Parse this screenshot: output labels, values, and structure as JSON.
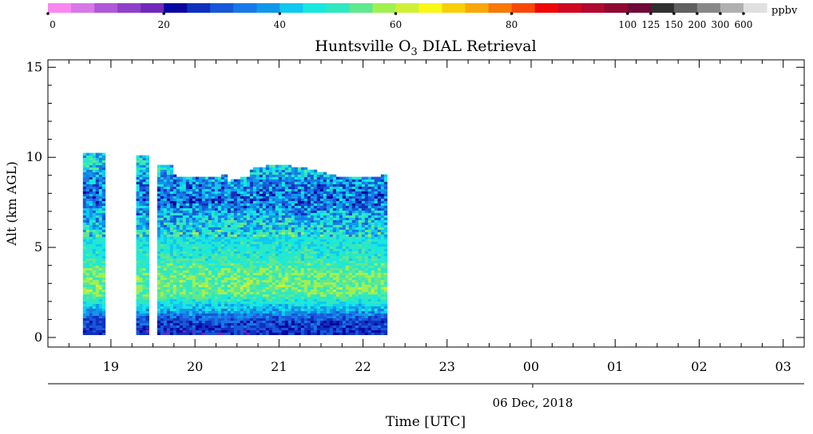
{
  "chart_data": {
    "type": "heatmap",
    "title": "Huntsville O3 DIAL Retrieval",
    "title_main": "Huntsville O",
    "title_sub": "3",
    "title_tail": " DIAL Retrieval",
    "xlabel": "Time [UTC]",
    "ylabel": "Alt (km AGL)",
    "date_label": "06 Dec, 2018",
    "x_unit": "hour UTC",
    "x_range": [
      "18:15",
      "03:15"
    ],
    "x_ticks": [
      "19",
      "20",
      "21",
      "22",
      "23",
      "00",
      "01",
      "02",
      "03"
    ],
    "ylim": [
      0,
      15.5
    ],
    "y_ticks": [
      "0",
      "5",
      "10",
      "15"
    ],
    "colorbar": {
      "unit": "ppbv",
      "tick_labels": [
        "0",
        "20",
        "40",
        "60",
        "80",
        "100",
        "125",
        "150",
        "200",
        "300",
        "600"
      ],
      "colors": [
        "#f888f0",
        "#d878e8",
        "#b058d8",
        "#9040c8",
        "#7028b8",
        "#0808a0",
        "#1030c0",
        "#1858d8",
        "#1878e8",
        "#1098e8",
        "#10c8f0",
        "#18e8e0",
        "#30e8c0",
        "#60e890",
        "#a0f050",
        "#d0f038",
        "#f8f818",
        "#f8d008",
        "#f8a808",
        "#f87808",
        "#f84808",
        "#f00808",
        "#d00820",
        "#b00830",
        "#900830",
        "#700838",
        "#303030",
        "#606060",
        "#888888",
        "#b0b0b0",
        "#e0e0e0"
      ],
      "class_edges": "0-20-40-60-80-100 linear (4 ppbv bins), then 100,125,150,200,300,600"
    },
    "profiles": [
      {
        "start": "18:40",
        "end": "18:55",
        "top_km": 10.2
      },
      {
        "start": "19:18",
        "end": "19:27",
        "top_km": 10.1
      },
      {
        "start": "19:33",
        "end": "22:17",
        "top_km": 9.2
      }
    ],
    "o3_ppbv_by_altitude": [
      {
        "alt_km": 0.2,
        "ppbv": 25
      },
      {
        "alt_km": 1.0,
        "ppbv": 30
      },
      {
        "alt_km": 1.6,
        "ppbv": 42
      },
      {
        "alt_km": 2.5,
        "ppbv": 55
      },
      {
        "alt_km": 3.5,
        "ppbv": 54
      },
      {
        "alt_km": 4.5,
        "ppbv": 48
      },
      {
        "alt_km": 5.5,
        "ppbv": 46
      },
      {
        "alt_km": 6.5,
        "ppbv": 42
      },
      {
        "alt_km": 7.5,
        "ppbv": 32
      },
      {
        "alt_km": 8.5,
        "ppbv": 36
      },
      {
        "alt_km": 9.5,
        "ppbv": 44
      }
    ]
  }
}
